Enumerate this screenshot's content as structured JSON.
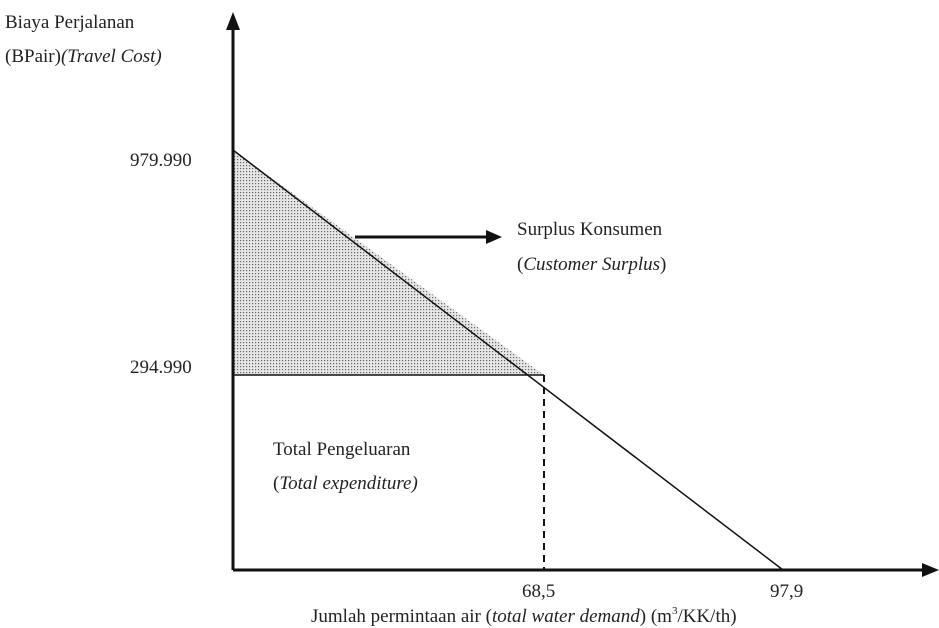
{
  "y_axis": {
    "title_line1": "Biaya Perjalanan",
    "title_line2": "(BPair)",
    "title_line2_italic": "(Travel Cost)",
    "ticks": [
      "979.990",
      "294.990"
    ]
  },
  "x_axis": {
    "ticks": [
      "68,5",
      "97,9"
    ],
    "title": "Jumlah permintaan air (",
    "title_italic": "total water demand",
    "title_end": ") (m",
    "title_sup": "3",
    "title_unit": "/KK/th)"
  },
  "annotations": {
    "surplus": {
      "line1": "Surplus Konsumen",
      "open": "(",
      "line2_italic": "Customer Surplus",
      "close": ")"
    },
    "expenditure": {
      "line1": "Total Pengeluaran",
      "open": "(",
      "line2_italic": "Total expenditure)"
    }
  }
}
